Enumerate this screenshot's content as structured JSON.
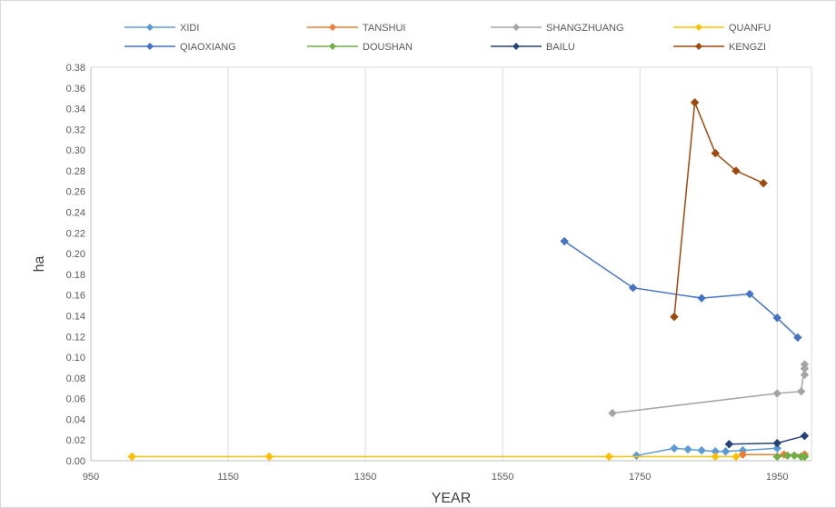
{
  "chart_data": {
    "type": "line",
    "xlabel": "YEAR",
    "ylabel": "ha",
    "xlim": [
      950,
      2000
    ],
    "ylim": [
      0,
      0.38
    ],
    "x_ticks": [
      950,
      1150,
      1350,
      1550,
      1750,
      1950
    ],
    "y_ticks": [
      "0.00",
      "0.02",
      "0.04",
      "0.06",
      "0.08",
      "0.10",
      "0.12",
      "0.14",
      "0.16",
      "0.18",
      "0.20",
      "0.22",
      "0.24",
      "0.26",
      "0.28",
      "0.30",
      "0.32",
      "0.34",
      "0.36",
      "0.38"
    ],
    "grid": "vertical",
    "legend_position": "top",
    "series": [
      {
        "name": "XIDI",
        "color": "#5b9bd5",
        "points": [
          [
            1745,
            0.005
          ],
          [
            1800,
            0.012
          ],
          [
            1820,
            0.011
          ],
          [
            1840,
            0.01
          ],
          [
            1860,
            0.009
          ],
          [
            1875,
            0.009
          ],
          [
            1900,
            0.01
          ],
          [
            1950,
            0.012
          ]
        ]
      },
      {
        "name": "TANSHUI",
        "color": "#ed7d31",
        "points": [
          [
            1900,
            0.006
          ],
          [
            1960,
            0.006
          ],
          [
            1990,
            0.006
          ]
        ]
      },
      {
        "name": "SHANGZHUANG",
        "color": "#a5a5a5",
        "points": [
          [
            1710,
            0.046
          ],
          [
            1950,
            0.065
          ],
          [
            1985,
            0.067
          ],
          [
            1990,
            0.093
          ],
          [
            2000,
            0.089
          ],
          [
            2015,
            0.083
          ]
        ]
      },
      {
        "name": "QUANFU",
        "color": "#ffc000",
        "points": [
          [
            1010,
            0.004
          ],
          [
            1210,
            0.004
          ],
          [
            1705,
            0.004
          ],
          [
            1860,
            0.004
          ],
          [
            1890,
            0.004
          ]
        ]
      },
      {
        "name": "QIAOXIANG",
        "color": "#4472c4",
        "points": [
          [
            1640,
            0.212
          ],
          [
            1740,
            0.167
          ],
          [
            1840,
            0.157
          ],
          [
            1910,
            0.161
          ],
          [
            1950,
            0.138
          ],
          [
            1980,
            0.119
          ]
        ]
      },
      {
        "name": "DOUSHAN",
        "color": "#70ad47",
        "points": [
          [
            1950,
            0.004
          ],
          [
            1965,
            0.005
          ],
          [
            1975,
            0.005
          ],
          [
            1985,
            0.004
          ],
          [
            1995,
            0.004
          ],
          [
            2005,
            0.004
          ]
        ]
      },
      {
        "name": "BAILU",
        "color": "#264478",
        "points": [
          [
            1880,
            0.016
          ],
          [
            1950,
            0.017
          ],
          [
            1995,
            0.024
          ]
        ]
      },
      {
        "name": "KENGZI",
        "color": "#9e480e",
        "points": [
          [
            1800,
            0.139
          ],
          [
            1830,
            0.346
          ],
          [
            1860,
            0.297
          ],
          [
            1890,
            0.28
          ],
          [
            1930,
            0.268
          ]
        ]
      }
    ]
  }
}
